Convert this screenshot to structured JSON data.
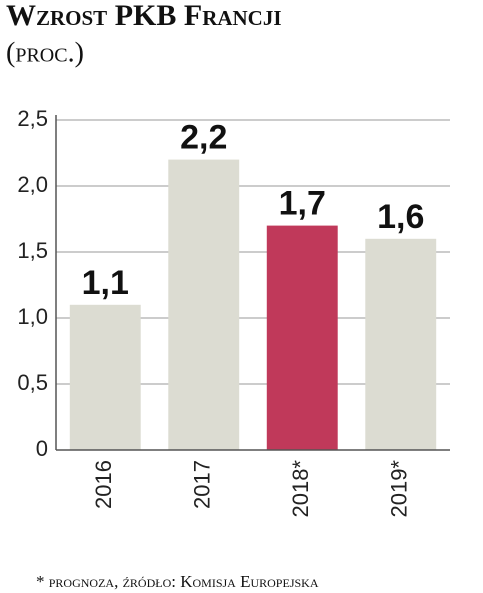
{
  "chart_data": {
    "type": "bar",
    "title": "Wzrost PKB Francji",
    "subtitle": "(proc.)",
    "categories": [
      "2016",
      "2017",
      "2018*",
      "2019*"
    ],
    "values": [
      1.1,
      2.2,
      1.7,
      1.6
    ],
    "value_labels": [
      "1,1",
      "2,2",
      "1,7",
      "1,6"
    ],
    "colors": [
      "#dcdcd2",
      "#dcdcd2",
      "#c0395a",
      "#dcdcd2"
    ],
    "ylim": [
      0,
      2.5
    ],
    "yticks": [
      0,
      {
        "value": 0.5,
        "label": "0,5"
      },
      {
        "value": 1.0,
        "label": "1,0"
      },
      {
        "value": 1.5,
        "label": "1,5"
      },
      {
        "value": 2.0,
        "label": "2,0"
      },
      {
        "value": 2.5,
        "label": "2,5"
      }
    ],
    "grid": true,
    "note": "* prognoza, źródło: Komisja Europejska"
  }
}
